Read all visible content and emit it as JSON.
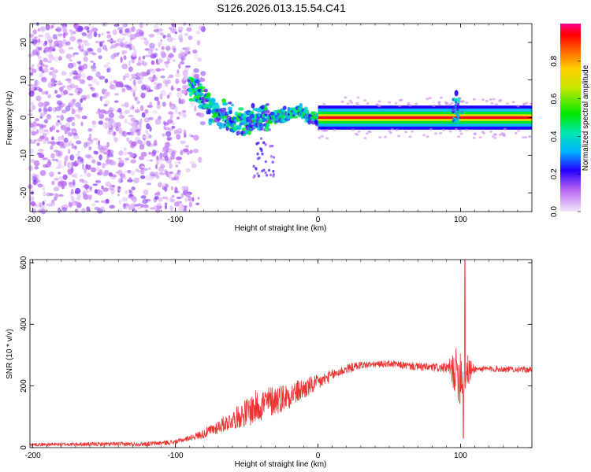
{
  "title": "S126.2026.013.15.54.C41",
  "chart_data": [
    {
      "type": "heatmap",
      "xlabel": "Height of straight line (km)",
      "ylabel": "Frequency (Hz)",
      "xlim": [
        -202,
        150
      ],
      "ylim": [
        -25,
        25
      ],
      "xticks": [
        -200,
        -100,
        0,
        100
      ],
      "yticks": [
        -20,
        -10,
        0,
        10,
        20
      ],
      "colorbar": {
        "label": "Normalized spectral amplitude",
        "range": [
          0,
          1
        ],
        "ticks": [
          "0.0",
          "0.2",
          "0.4",
          "0.6",
          "0.8"
        ]
      },
      "features": [
        {
          "name": "noise_region",
          "x_range": [
            -202,
            -90
          ],
          "y_range": [
            -25,
            25
          ],
          "amplitude": 0.1
        },
        {
          "name": "descending_trace",
          "points": [
            [
              -90,
              9
            ],
            [
              -80,
              5
            ],
            [
              -70,
              1
            ],
            [
              -60,
              -1
            ],
            [
              -50,
              -2
            ],
            [
              -40,
              0
            ],
            [
              -30,
              0
            ],
            [
              -20,
              1
            ],
            [
              -12,
              2
            ],
            [
              -5,
              0
            ],
            [
              0,
              0
            ]
          ],
          "amplitude": 0.3
        },
        {
          "name": "steady_tone",
          "x_range": [
            0,
            150
          ],
          "frequency": 0,
          "amplitude": 0.95
        },
        {
          "name": "burst",
          "x": 97,
          "y_range": [
            -2,
            5
          ],
          "amplitude": 0.3
        }
      ]
    },
    {
      "type": "line",
      "xlabel": "Height of straight line (km)",
      "ylabel": "SNR (10 * v/v)",
      "xlim": [
        -202,
        150
      ],
      "ylim": [
        0,
        610
      ],
      "xticks": [
        -200,
        -100,
        0,
        100
      ],
      "yticks": [
        0,
        200,
        400,
        600
      ],
      "color": "#ee3333",
      "envelope": [
        [
          -202,
          10
        ],
        [
          -120,
          12
        ],
        [
          -100,
          18
        ],
        [
          -80,
          45
        ],
        [
          -60,
          90
        ],
        [
          -40,
          140
        ],
        [
          -20,
          170
        ],
        [
          0,
          210
        ],
        [
          10,
          235
        ],
        [
          20,
          255
        ],
        [
          30,
          268
        ],
        [
          50,
          272
        ],
        [
          70,
          262
        ],
        [
          90,
          258
        ],
        [
          100,
          240
        ],
        [
          110,
          255
        ],
        [
          130,
          255
        ],
        [
          150,
          252
        ]
      ],
      "noise": [
        [
          -202,
          5
        ],
        [
          -90,
          8
        ],
        [
          -60,
          30
        ],
        [
          -45,
          55
        ],
        [
          -30,
          50
        ],
        [
          -10,
          35
        ],
        [
          10,
          18
        ],
        [
          40,
          10
        ],
        [
          90,
          15
        ],
        [
          95,
          60
        ],
        [
          100,
          110
        ],
        [
          106,
          45
        ],
        [
          110,
          10
        ],
        [
          150,
          10
        ]
      ],
      "spike": {
        "x": 103,
        "peak": 610,
        "trough": 30
      }
    }
  ]
}
